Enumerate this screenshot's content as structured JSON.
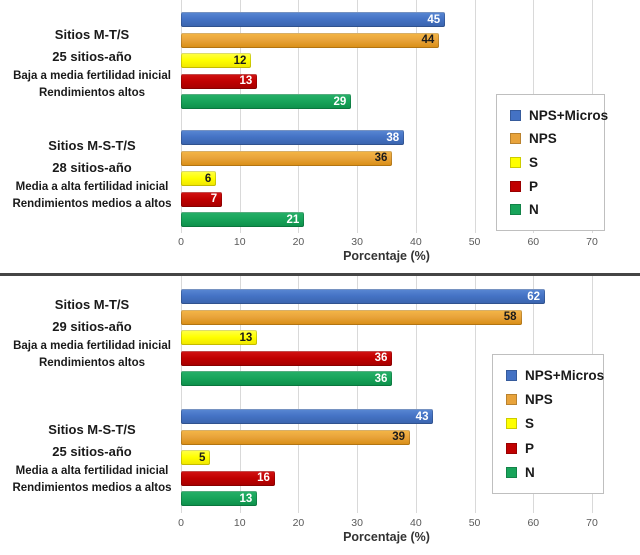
{
  "figure": {
    "background": "#ffffff",
    "divider_color": "#454545",
    "gridline_color": "#d9d9d9"
  },
  "series_legend": [
    {
      "label": "NPS+Micros",
      "color": "#4472c4",
      "gradient": [
        "#5988d4",
        "#3a63ac"
      ],
      "value_text_color": "#ffffff"
    },
    {
      "label": "NPS",
      "color": "#e8a33b",
      "gradient": [
        "#f5b747",
        "#d88d14"
      ],
      "value_text_color": "#1a1a1a"
    },
    {
      "label": "S",
      "color": "#ffff00",
      "gradient": [
        "#ffff4d",
        "#efe400"
      ],
      "value_text_color": "#1a1a1a"
    },
    {
      "label": "P",
      "color": "#c00000",
      "gradient": [
        "#d31414",
        "#a50000"
      ],
      "value_text_color": "#ffffff"
    },
    {
      "label": "N",
      "color": "#18a45a",
      "gradient": [
        "#27b169",
        "#0d8f4a"
      ],
      "value_text_color": "#ffffff"
    }
  ],
  "chart_data": [
    {
      "type": "bar",
      "orientation": "horizontal",
      "xlabel": "Porcentaje (%)",
      "xlim": [
        0,
        70
      ],
      "x_ticks": [
        0,
        10,
        20,
        30,
        40,
        50,
        60,
        70
      ],
      "grid": true,
      "legend_position": "right",
      "series_names": [
        "NPS+Micros",
        "NPS",
        "S",
        "P",
        "N"
      ],
      "groups": [
        {
          "category_lines": [
            "Sitios M-T/S",
            "25 sitios-año",
            "Baja a media fertilidad inicial",
            "Rendimientos altos"
          ],
          "values": [
            45,
            44,
            12,
            13,
            29
          ]
        },
        {
          "category_lines": [
            "Sitios M-S-T/S",
            "28 sitios-año",
            "Media a alta fertilidad inicial",
            "Rendimientos medios a altos"
          ],
          "values": [
            38,
            36,
            6,
            7,
            21
          ]
        }
      ]
    },
    {
      "type": "bar",
      "orientation": "horizontal",
      "xlabel": "Porcentaje (%)",
      "xlim": [
        0,
        70
      ],
      "x_ticks": [
        0,
        10,
        20,
        30,
        40,
        50,
        60,
        70
      ],
      "grid": true,
      "legend_position": "right",
      "series_names": [
        "NPS+Micros",
        "NPS",
        "S",
        "P",
        "N"
      ],
      "groups": [
        {
          "category_lines": [
            "Sitios M-T/S",
            "29 sitios-año",
            "Baja a media fertilidad inicial",
            "Rendimientos altos"
          ],
          "values": [
            62,
            58,
            13,
            36,
            36
          ]
        },
        {
          "category_lines": [
            "Sitios M-S-T/S",
            "25 sitios-año",
            "Media a alta fertilidad inicial",
            "Rendimientos medios a altos"
          ],
          "values": [
            43,
            39,
            5,
            16,
            13
          ]
        }
      ]
    }
  ]
}
